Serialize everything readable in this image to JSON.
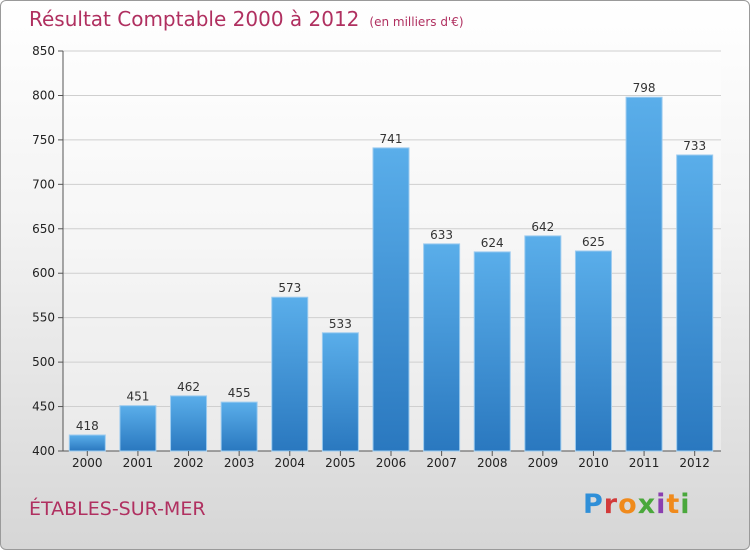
{
  "chart_data": {
    "type": "bar",
    "title": "Résultat Comptable 2000 à 2012",
    "subtitle": "(en milliers d'€)",
    "categories": [
      "2000",
      "2001",
      "2002",
      "2003",
      "2004",
      "2005",
      "2006",
      "2007",
      "2008",
      "2009",
      "2010",
      "2011",
      "2012"
    ],
    "values": [
      418,
      451,
      462,
      455,
      573,
      533,
      741,
      633,
      624,
      642,
      625,
      798,
      733
    ],
    "ylim": [
      400,
      850
    ],
    "yticks": [
      400,
      450,
      500,
      550,
      600,
      650,
      700,
      750,
      800,
      850
    ],
    "xlabel": "",
    "ylabel": "",
    "grid": true,
    "bar_color_top": "#5aaeea",
    "bar_color_bottom": "#2a78bf"
  },
  "footer": {
    "city": "ÉTABLES-SUR-MER",
    "logo_text": "Proxiti"
  }
}
